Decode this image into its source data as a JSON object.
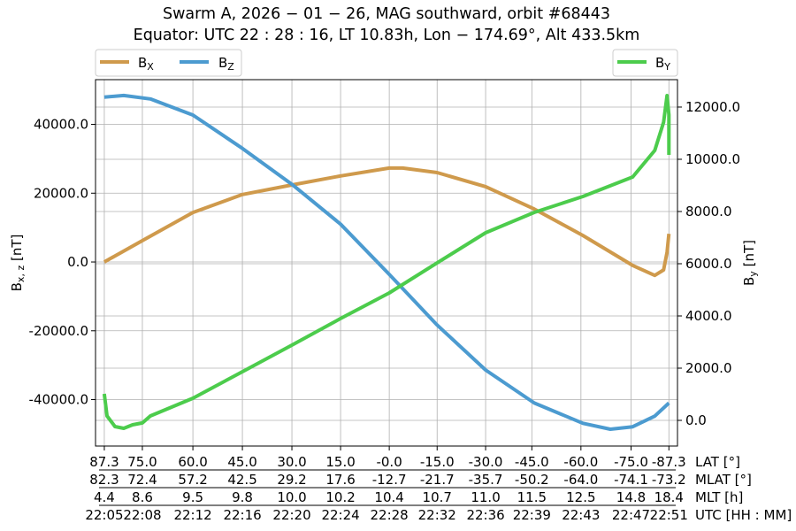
{
  "chart_data": {
    "type": "line",
    "title_line1": "Swarm A,  2026 − 01 − 26,  MAG southward,  orbit #68443",
    "title_line2": "Equator:  UTC 22 : 28 : 16,  LT 10.83h,  Lon  − 174.69°,  Alt 433.5km",
    "ylabel_left": "B",
    "ylabel_left_sub": "x, z",
    "ylabel_left_unit": " [nT]",
    "ylabel_right": "B",
    "ylabel_right_sub": "y",
    "ylabel_right_unit": " [nT]",
    "xlim": [
      "22:04:17",
      "22:51:42"
    ],
    "ylim_left": [
      -53500,
      53000
    ],
    "ylim_right": [
      -983,
      13050
    ],
    "grid": true,
    "yticks_left": [
      -40000,
      -20000,
      0,
      20000,
      40000
    ],
    "yticks_left_labels": [
      "-40000.0",
      "-20000.0",
      "0.0",
      "20000.0",
      "40000.0"
    ],
    "yticks_right": [
      0,
      2000,
      4000,
      6000,
      8000,
      10000,
      12000
    ],
    "yticks_right_labels": [
      "0.0",
      "2000.0",
      "4000.0",
      "6000.0",
      "8000.0",
      "10000.0",
      "12000.0"
    ],
    "xticks": [
      "22:05:00",
      "22:08:06",
      "22:12:13",
      "22:16:15",
      "22:20:17",
      "22:24:15",
      "22:28:13",
      "22:32:07",
      "22:36:04",
      "22:39:50",
      "22:43:50",
      "22:47:55",
      "22:51:00"
    ],
    "xtick_rows": [
      {
        "label": "LAT [°]",
        "values": [
          "87.3",
          "75.0",
          "60.0",
          "45.0",
          "30.0",
          "15.0",
          "-0.0",
          "-15.0",
          "-30.0",
          "-45.0",
          "-60.0",
          "-75.0",
          "-87.3"
        ]
      },
      {
        "label": "MLAT [°]",
        "values": [
          "82.3",
          "72.4",
          "57.2",
          "42.5",
          "29.2",
          "17.6",
          "-12.7",
          "-21.7",
          "-35.7",
          "-50.2",
          "-64.0",
          "-74.1",
          "-73.2"
        ]
      },
      {
        "label": "MLT [h]",
        "values": [
          "4.4",
          "8.6",
          "9.5",
          "9.8",
          "10.0",
          "10.2",
          "10.4",
          "10.7",
          "11.0",
          "11.5",
          "12.5",
          "14.8",
          "18.4"
        ]
      },
      {
        "label": "UTC [HH : MM]",
        "values": [
          "22:05",
          "22:08",
          "22:12",
          "22:16",
          "22:20",
          "22:24",
          "22:28",
          "22:32",
          "22:36",
          "22:39",
          "22:43",
          "22:47",
          "22:51"
        ]
      }
    ],
    "legend_left": {
      "placement": "top-left",
      "entries": [
        "Bx",
        "Bz"
      ]
    },
    "legend_right": {
      "placement": "top-right",
      "entries": [
        "By"
      ]
    },
    "series": [
      {
        "name": "Bx",
        "name_main": "B",
        "name_sub": "X",
        "axis": "left",
        "color": "#cf9a4c",
        "points": [
          [
            "22:05:00",
            0
          ],
          [
            "22:08:06",
            6200
          ],
          [
            "22:12:13",
            14400
          ],
          [
            "22:16:15",
            19600
          ],
          [
            "22:20:17",
            22400
          ],
          [
            "22:24:15",
            25000
          ],
          [
            "22:28:13",
            27300
          ],
          [
            "22:29:18",
            27300
          ],
          [
            "22:32:07",
            26000
          ],
          [
            "22:36:04",
            21900
          ],
          [
            "22:40:02",
            15400
          ],
          [
            "22:44:00",
            7700
          ],
          [
            "22:48:03",
            -1000
          ],
          [
            "22:49:51",
            -3900
          ],
          [
            "22:50:34",
            -2300
          ],
          [
            "22:50:51",
            2800
          ],
          [
            "22:51:00",
            8200
          ]
        ]
      },
      {
        "name": "Bz",
        "name_main": "B",
        "name_sub": "Z",
        "axis": "left",
        "color": "#4c9bd0",
        "points": [
          [
            "22:05:00",
            47900
          ],
          [
            "22:06:35",
            48400
          ],
          [
            "22:08:45",
            47400
          ],
          [
            "22:12:13",
            42700
          ],
          [
            "22:16:15",
            33000
          ],
          [
            "22:20:17",
            22600
          ],
          [
            "22:24:15",
            11000
          ],
          [
            "22:28:13",
            -3600
          ],
          [
            "22:32:07",
            -18300
          ],
          [
            "22:36:04",
            -31400
          ],
          [
            "22:40:02",
            -41000
          ],
          [
            "22:44:00",
            -46900
          ],
          [
            "22:46:14",
            -48600
          ],
          [
            "22:48:03",
            -47900
          ],
          [
            "22:49:51",
            -44800
          ],
          [
            "22:51:00",
            -41000
          ]
        ]
      },
      {
        "name": "By",
        "name_main": "B",
        "name_sub": "Y",
        "axis": "right",
        "color": "#4ccc4c",
        "points": [
          [
            "22:05:00",
            1017
          ],
          [
            "22:05:13",
            170
          ],
          [
            "22:05:52",
            -237
          ],
          [
            "22:06:35",
            -305
          ],
          [
            "22:07:18",
            -170
          ],
          [
            "22:08:06",
            -100
          ],
          [
            "22:08:45",
            170
          ],
          [
            "22:12:13",
            847
          ],
          [
            "22:16:15",
            1864
          ],
          [
            "22:20:17",
            2880
          ],
          [
            "22:24:15",
            3900
          ],
          [
            "22:28:13",
            4880
          ],
          [
            "22:32:07",
            6030
          ],
          [
            "22:36:04",
            7186
          ],
          [
            "22:40:02",
            7966
          ],
          [
            "22:44:00",
            8576
          ],
          [
            "22:48:03",
            9322
          ],
          [
            "22:49:51",
            10340
          ],
          [
            "22:50:34",
            11420
          ],
          [
            "22:50:51",
            12440
          ],
          [
            "22:51:00",
            11700
          ],
          [
            "22:51:00",
            10170
          ]
        ]
      }
    ]
  }
}
